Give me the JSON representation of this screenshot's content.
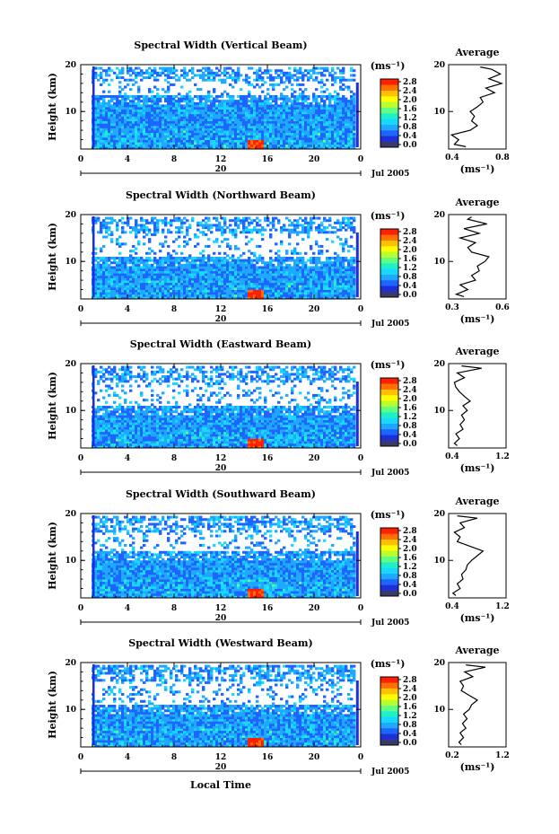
{
  "figure": {
    "xlabel": "Local Time",
    "day_label": "20",
    "month_label": "Jul 2005",
    "ylabel": "Height (km)",
    "unit_label": "(ms⁻¹)",
    "average_title": "Average",
    "average_xlabel": "(ms⁻¹)",
    "colorbar_ticks": [
      "0.0",
      "0.4",
      "0.8",
      "1.2",
      "1.6",
      "2.0",
      "2.4",
      "2.8"
    ],
    "colorbar_colors": [
      "#3a3a6a",
      "#1f2fd8",
      "#1e64ff",
      "#1ea8ff",
      "#18d8ff",
      "#20f0c8",
      "#60ff80",
      "#b8ff30",
      "#ffff00",
      "#ffc000",
      "#ff7000",
      "#ff2000"
    ],
    "x_ticks": [
      "0",
      "4",
      "8",
      "12",
      "16",
      "20",
      "0"
    ],
    "y_ticks": [
      "10",
      "20"
    ]
  },
  "chart_data": [
    {
      "type": "heatmap",
      "title": "Spectral Width (Vertical Beam)",
      "xlim": [
        0,
        24
      ],
      "ylim": [
        2,
        20
      ],
      "colorbar_range": [
        0.0,
        2.8
      ],
      "echo_top_km": 19.5,
      "gap_band_km": [
        13.5,
        16.5
      ],
      "average": {
        "xlim": [
          0.4,
          0.8
        ],
        "x_ticks": [
          "0.4",
          "0.8"
        ],
        "y_ticks": [
          "10",
          "20"
        ],
        "height": [
          2.5,
          3,
          4,
          5,
          6,
          7,
          8,
          9,
          10,
          11,
          12,
          13,
          14,
          15,
          16,
          17,
          18,
          19,
          19.5
        ],
        "value": [
          0.52,
          0.44,
          0.47,
          0.42,
          0.55,
          0.6,
          0.56,
          0.58,
          0.55,
          0.6,
          0.64,
          0.62,
          0.72,
          0.66,
          0.77,
          0.68,
          0.76,
          0.7,
          0.62
        ]
      }
    },
    {
      "type": "heatmap",
      "title": "Spectral Width (Northward Beam)",
      "xlim": [
        0,
        24
      ],
      "ylim": [
        2,
        20
      ],
      "colorbar_range": [
        0.0,
        2.8
      ],
      "echo_top_km": 19.5,
      "gap_band_km": [
        11.0,
        16.0
      ],
      "average": {
        "xlim": [
          0.3,
          0.6
        ],
        "x_ticks": [
          "0.3",
          "0.6"
        ],
        "y_ticks": [
          "10",
          "20"
        ],
        "height": [
          2.5,
          3,
          4,
          5,
          6,
          7,
          8,
          9,
          10,
          11,
          12,
          13,
          14,
          15,
          16,
          17,
          18,
          19,
          19.5
        ],
        "value": [
          0.38,
          0.34,
          0.4,
          0.36,
          0.44,
          0.42,
          0.46,
          0.45,
          0.49,
          0.51,
          0.42,
          0.4,
          0.44,
          0.36,
          0.46,
          0.38,
          0.5,
          0.4,
          0.42
        ]
      }
    },
    {
      "type": "heatmap",
      "title": "Spectral Width (Eastward Beam)",
      "xlim": [
        0,
        24
      ],
      "ylim": [
        2,
        20
      ],
      "colorbar_range": [
        0.0,
        2.8
      ],
      "echo_top_km": 19.5,
      "gap_band_km": [
        11.0,
        16.0
      ],
      "average": {
        "xlim": [
          0.4,
          1.2
        ],
        "x_ticks": [
          "0.4",
          "1.2"
        ],
        "y_ticks": [
          "10",
          "20"
        ],
        "height": [
          2.5,
          3,
          4,
          5,
          6,
          7,
          8,
          9,
          10,
          11,
          12,
          13,
          14,
          15,
          16,
          17,
          18,
          19,
          19.5
        ],
        "value": [
          0.52,
          0.48,
          0.55,
          0.5,
          0.6,
          0.56,
          0.62,
          0.58,
          0.66,
          0.6,
          0.7,
          0.62,
          0.55,
          0.5,
          0.48,
          0.62,
          0.52,
          0.86,
          0.58
        ]
      }
    },
    {
      "type": "heatmap",
      "title": "Spectral Width (Southward Beam)",
      "xlim": [
        0,
        24
      ],
      "ylim": [
        2,
        20
      ],
      "colorbar_range": [
        0.0,
        2.8
      ],
      "echo_top_km": 19.5,
      "gap_band_km": [
        12.0,
        16.0
      ],
      "average": {
        "xlim": [
          0.4,
          1.2
        ],
        "x_ticks": [
          "0.4",
          "1.2"
        ],
        "y_ticks": [
          "10",
          "20"
        ],
        "height": [
          2.5,
          3,
          4,
          5,
          6,
          7,
          8,
          9,
          10,
          11,
          12,
          13,
          14,
          15,
          16,
          17,
          18,
          19,
          19.5
        ],
        "value": [
          0.5,
          0.46,
          0.56,
          0.52,
          0.6,
          0.58,
          0.64,
          0.66,
          0.72,
          0.8,
          0.88,
          0.7,
          0.52,
          0.56,
          0.48,
          0.62,
          0.56,
          0.8,
          0.52
        ]
      }
    },
    {
      "type": "heatmap",
      "title": "Spectral Width (Westward Beam)",
      "xlim": [
        0,
        24
      ],
      "ylim": [
        2,
        20
      ],
      "colorbar_range": [
        0.0,
        2.8
      ],
      "echo_top_km": 19.5,
      "gap_band_km": [
        11.0,
        16.0
      ],
      "average": {
        "xlim": [
          0.2,
          1.2
        ],
        "x_ticks": [
          "0.2",
          "1.2"
        ],
        "y_ticks": [
          "10",
          "20"
        ],
        "height": [
          2.5,
          3,
          4,
          5,
          6,
          7,
          8,
          9,
          10,
          11,
          12,
          13,
          14,
          15,
          16,
          17,
          18,
          19,
          19.5
        ],
        "value": [
          0.42,
          0.38,
          0.46,
          0.4,
          0.5,
          0.44,
          0.52,
          0.46,
          0.56,
          0.6,
          0.7,
          0.56,
          0.42,
          0.46,
          0.4,
          0.62,
          0.48,
          0.84,
          0.5
        ]
      }
    }
  ]
}
